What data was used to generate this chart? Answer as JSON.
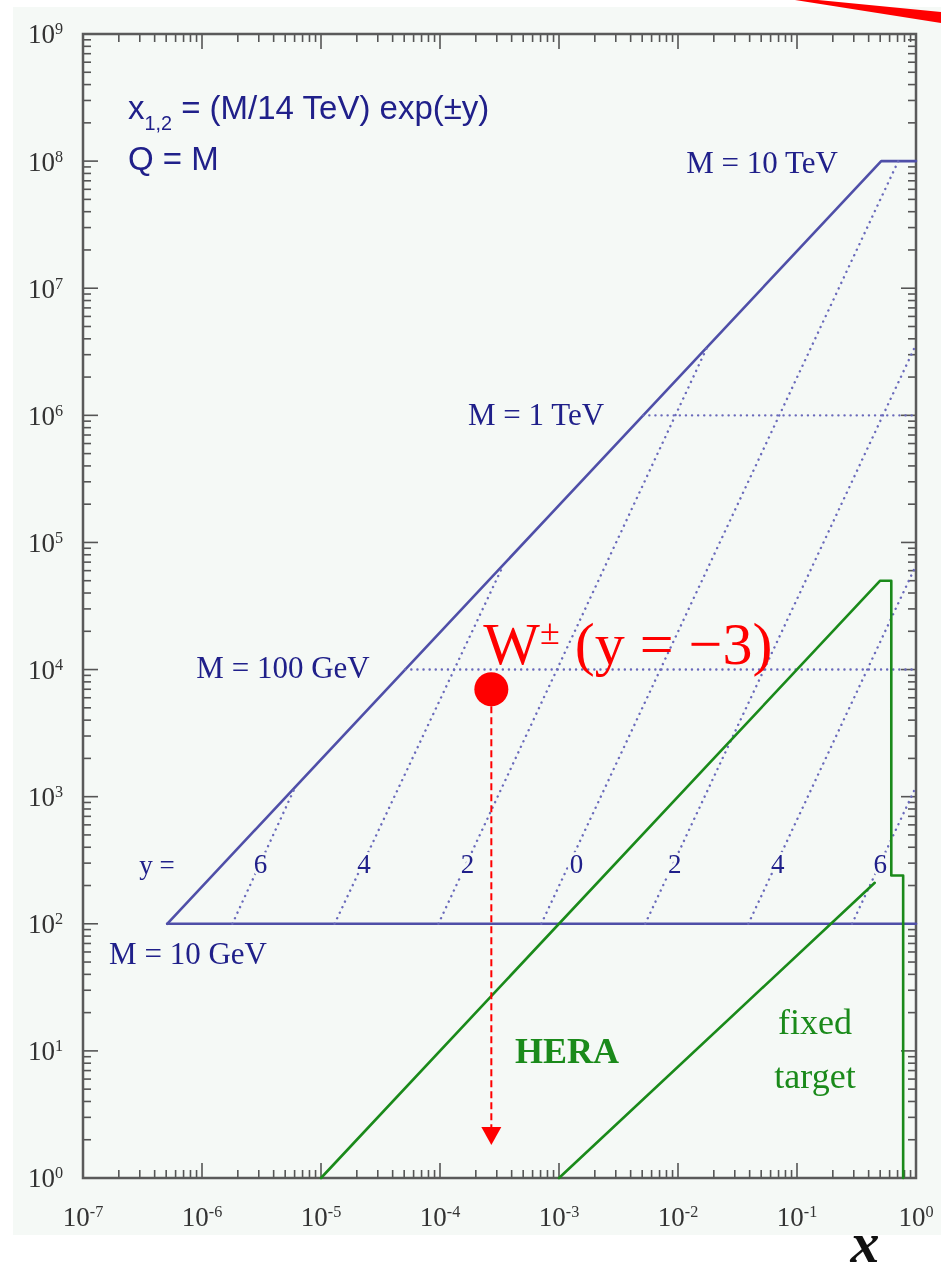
{
  "chart_data": {
    "type": "line",
    "xlabel": "x",
    "log": "xy",
    "xlim": [
      1e-07,
      1
    ],
    "ylim": [
      1,
      1000000000.0
    ],
    "xticks": [
      {
        "value": 1e-07,
        "label": "10$^{-7}$"
      },
      {
        "value": 2e-07,
        "label": null
      },
      {
        "value": 3e-07,
        "label": null
      },
      {
        "value": 4e-07,
        "label": null
      },
      {
        "value": 5e-07,
        "label": null
      },
      {
        "value": 6e-07,
        "label": null
      },
      {
        "value": 7e-07,
        "label": null
      },
      {
        "value": 8e-07,
        "label": null
      },
      {
        "value": 9e-07,
        "label": null
      },
      {
        "value": 1e-06,
        "label": "10$^{-6}$"
      },
      {
        "value": 2e-06,
        "label": null
      },
      {
        "value": 3e-06,
        "label": null
      },
      {
        "value": 4e-06,
        "label": null
      },
      {
        "value": 5e-06,
        "label": null
      },
      {
        "value": 6e-06,
        "label": null
      },
      {
        "value": 7e-06,
        "label": null
      },
      {
        "value": 8e-06,
        "label": null
      },
      {
        "value": 9e-06,
        "label": null
      },
      {
        "value": 1e-05,
        "label": "10$^{-5}$"
      },
      {
        "value": 2e-05,
        "label": null
      },
      {
        "value": 3e-05,
        "label": null
      },
      {
        "value": 4e-05,
        "label": null
      },
      {
        "value": 5e-05,
        "label": null
      },
      {
        "value": 6e-05,
        "label": null
      },
      {
        "value": 7e-05,
        "label": null
      },
      {
        "value": 8e-05,
        "label": null
      },
      {
        "value": 9e-05,
        "label": null
      },
      {
        "value": 0.0001,
        "label": "10$^{-4}$"
      },
      {
        "value": 0.0002,
        "label": null
      },
      {
        "value": 0.0003,
        "label": null
      },
      {
        "value": 0.0004,
        "label": null
      },
      {
        "value": 0.0005,
        "label": null
      },
      {
        "value": 0.0006,
        "label": null
      },
      {
        "value": 0.0007,
        "label": null
      },
      {
        "value": 0.0008,
        "label": null
      },
      {
        "value": 0.0009,
        "label": null
      },
      {
        "value": 0.001,
        "label": "10$^{-3}$"
      },
      {
        "value": 0.002,
        "label": null
      },
      {
        "value": 0.003,
        "label": null
      },
      {
        "value": 0.004,
        "label": null
      },
      {
        "value": 0.005,
        "label": null
      },
      {
        "value": 0.006,
        "label": null
      },
      {
        "value": 0.007,
        "label": null
      },
      {
        "value": 0.008,
        "label": null
      },
      {
        "value": 0.009,
        "label": null
      },
      {
        "value": 0.01,
        "label": "10$^{-2}$"
      },
      {
        "value": 0.02,
        "label": null
      },
      {
        "value": 0.03,
        "label": null
      },
      {
        "value": 0.04,
        "label": null
      },
      {
        "value": 0.05,
        "label": null
      },
      {
        "value": 0.06,
        "label": null
      },
      {
        "value": 0.07,
        "label": null
      },
      {
        "value": 0.08,
        "label": null
      },
      {
        "value": 0.09,
        "label": null
      },
      {
        "value": 0.1,
        "label": "10$^{-1}$"
      },
      {
        "value": 0.2,
        "label": null
      },
      {
        "value": 0.3,
        "label": null
      },
      {
        "value": 0.4,
        "label": null
      },
      {
        "value": 0.5,
        "label": null
      },
      {
        "value": 0.6,
        "label": null
      },
      {
        "value": 0.7,
        "label": null
      },
      {
        "value": 0.8,
        "label": null
      },
      {
        "value": 0.9,
        "label": null
      },
      {
        "value": 1,
        "label": "10$^{0}$"
      }
    ],
    "yticks": [
      {
        "value": 1,
        "label": "10$^{0}$"
      },
      {
        "value": 2,
        "label": null
      },
      {
        "value": 3,
        "label": null
      },
      {
        "value": 4,
        "label": null
      },
      {
        "value": 5,
        "label": null
      },
      {
        "value": 6,
        "label": null
      },
      {
        "value": 7,
        "label": null
      },
      {
        "value": 8,
        "label": null
      },
      {
        "value": 9,
        "label": null
      },
      {
        "value": 10,
        "label": "10$^{1}$"
      },
      {
        "value": 20,
        "label": null
      },
      {
        "value": 30,
        "label": null
      },
      {
        "value": 40,
        "label": null
      },
      {
        "value": 50,
        "label": null
      },
      {
        "value": 60,
        "label": null
      },
      {
        "value": 70,
        "label": null
      },
      {
        "value": 80,
        "label": null
      },
      {
        "value": 90,
        "label": null
      },
      {
        "value": 100,
        "label": "10$^{2}$"
      },
      {
        "value": 200,
        "label": null
      },
      {
        "value": 300,
        "label": null
      },
      {
        "value": 400,
        "label": null
      },
      {
        "value": 500,
        "label": null
      },
      {
        "value": 600,
        "label": null
      },
      {
        "value": 700,
        "label": null
      },
      {
        "value": 800,
        "label": null
      },
      {
        "value": 900,
        "label": null
      },
      {
        "value": 1000,
        "label": "10$^{3}$"
      },
      {
        "value": 2000,
        "label": null
      },
      {
        "value": 3000,
        "label": null
      },
      {
        "value": 4000,
        "label": null
      },
      {
        "value": 5000,
        "label": null
      },
      {
        "value": 6000,
        "label": null
      },
      {
        "value": 7000,
        "label": null
      },
      {
        "value": 8000,
        "label": null
      },
      {
        "value": 9000,
        "label": null
      },
      {
        "value": 10000,
        "label": "10$^{4}$"
      },
      {
        "value": 20000,
        "label": null
      },
      {
        "value": 30000,
        "label": null
      },
      {
        "value": 40000,
        "label": null
      },
      {
        "value": 50000,
        "label": null
      },
      {
        "value": 60000,
        "label": null
      },
      {
        "value": 70000,
        "label": null
      },
      {
        "value": 80000,
        "label": null
      },
      {
        "value": 90000,
        "label": null
      },
      {
        "value": 100000.0,
        "label": "10$^{5}$"
      },
      {
        "value": 200000.0,
        "label": null
      },
      {
        "value": 300000.0,
        "label": null
      },
      {
        "value": 400000.0,
        "label": null
      },
      {
        "value": 500000.0,
        "label": null
      },
      {
        "value": 600000.0,
        "label": null
      },
      {
        "value": 700000.0,
        "label": null
      },
      {
        "value": 800000.0,
        "label": null
      },
      {
        "value": 900000.0,
        "label": null
      },
      {
        "value": 1000000.0,
        "label": "10$^{6}$"
      },
      {
        "value": 2000000.0,
        "label": null
      },
      {
        "value": 3000000.0,
        "label": null
      },
      {
        "value": 4000000.0,
        "label": null
      },
      {
        "value": 5000000.0,
        "label": null
      },
      {
        "value": 6000000.0,
        "label": null
      },
      {
        "value": 7000000.0,
        "label": null
      },
      {
        "value": 8000000.0,
        "label": null
      },
      {
        "value": 9000000.0,
        "label": null
      },
      {
        "value": 10000000.0,
        "label": "10$^{7}$"
      },
      {
        "value": 20000000.0,
        "label": null
      },
      {
        "value": 30000000.0,
        "label": null
      },
      {
        "value": 40000000.0,
        "label": null
      },
      {
        "value": 50000000.0,
        "label": null
      },
      {
        "value": 60000000.0,
        "label": null
      },
      {
        "value": 70000000.0,
        "label": null
      },
      {
        "value": 80000000.0,
        "label": null
      },
      {
        "value": 90000000.0,
        "label": null
      },
      {
        "value": 100000000.0,
        "label": "10$^{8}$"
      },
      {
        "value": 200000000.0,
        "label": null
      },
      {
        "value": 300000000.0,
        "label": null
      },
      {
        "value": 400000000.0,
        "label": null
      },
      {
        "value": 500000000.0,
        "label": null
      },
      {
        "value": 600000000.0,
        "label": null
      },
      {
        "value": 700000000.0,
        "label": null
      },
      {
        "value": 800000000.0,
        "label": null
      },
      {
        "value": 900000000.0,
        "label": null
      },
      {
        "value": 1000000000.0,
        "label": "10$^{9}$"
      }
    ],
    "annotations": [
      "x$_{1,2}$ = (M/14 TeV) exp(±y)",
      "Q = M",
      "M = 10 TeV",
      "M = 1 TeV",
      "M = 100 GeV",
      "M = 10 GeV",
      "y =",
      "HERA",
      "fixed\ntarget",
      {
        "text": "6",
        "x": 3.1e-06,
        "y": 300
      },
      {
        "text": "4",
        "x": 2.3e-05,
        "y": 300
      },
      {
        "text": "2",
        "x": 0.00017,
        "y": 300
      },
      {
        "text": "0",
        "x": 0.0014,
        "y": 300
      },
      {
        "text": "2",
        "x": 0.0094,
        "y": 300
      },
      {
        "text": "4",
        "x": 0.069,
        "y": 300
      },
      {
        "text": "6",
        "x": 0.5,
        "y": 300
      }
    ],
    "series": [
      {
        "color": "#4f4fa8",
        "line_style": "solid",
        "x": [
          5.1e-07,
          0.51,
          1
        ],
        "values": [
          100,
          100000000.0,
          100000000.0
        ]
      },
      {
        "color": "#4f4fa8",
        "line_style": "solid",
        "x": [
          5.1e-07,
          1
        ],
        "values": [
          100,
          100
        ]
      },
      {
        "color": "#6a6abb",
        "line_style": "dotted",
        "x": [
          5.1e-05,
          1
        ],
        "values": [
          10000,
          10000
        ]
      },
      {
        "color": "#6a6abb",
        "line_style": "dotted",
        "x": [
          0.0051,
          1
        ],
        "values": [
          1000000.0,
          1000000.0
        ]
      },
      {
        "color": "#6a6abb",
        "line_style": "dotted",
        "x": [
          1.8e-06,
          6.1e-06
        ],
        "values": [
          100,
          1200
        ]
      },
      {
        "color": "#6a6abb",
        "line_style": "dotted",
        "x": [
          1.3e-05,
          0.00034
        ],
        "values": [
          100,
          66000
        ]
      },
      {
        "color": "#6a6abb",
        "line_style": "dotted",
        "x": [
          9.7e-05,
          0.018
        ],
        "values": [
          100,
          3600000.0
        ]
      },
      {
        "color": "#6a6abb",
        "line_style": "dotted",
        "x": [
          0.00071,
          0.71
        ],
        "values": [
          100,
          100000000.0
        ]
      },
      {
        "color": "#6a6abb",
        "line_style": "dotted",
        "x": [
          0.0053,
          1
        ],
        "values": [
          100,
          3600000.0
        ]
      },
      {
        "color": "#6a6abb",
        "line_style": "dotted",
        "x": [
          0.039,
          1
        ],
        "values": [
          100,
          66000
        ]
      },
      {
        "color": "#6a6abb",
        "line_style": "dotted",
        "x": [
          0.29,
          1
        ],
        "values": [
          100,
          1200
        ]
      },
      {
        "color": "#1a8a1a",
        "line_style": "solid",
        "x": [
          1e-05,
          0.5,
          0.62,
          0.62,
          0.78,
          0.78
        ],
        "values": [
          1,
          50000,
          50000,
          240,
          240,
          1
        ]
      },
      {
        "color": "#1a8a1a",
        "line_style": "solid",
        "x": [
          0.001,
          0.45
        ],
        "values": [
          1,
          210
        ]
      },
      {
        "type": "scatter",
        "name": "W$^{±}$ (y = −3)",
        "color": "#ff0000",
        "marker": "circle",
        "x": [
          0.00027
        ],
        "values": [
          7000
        ]
      }
    ]
  }
}
